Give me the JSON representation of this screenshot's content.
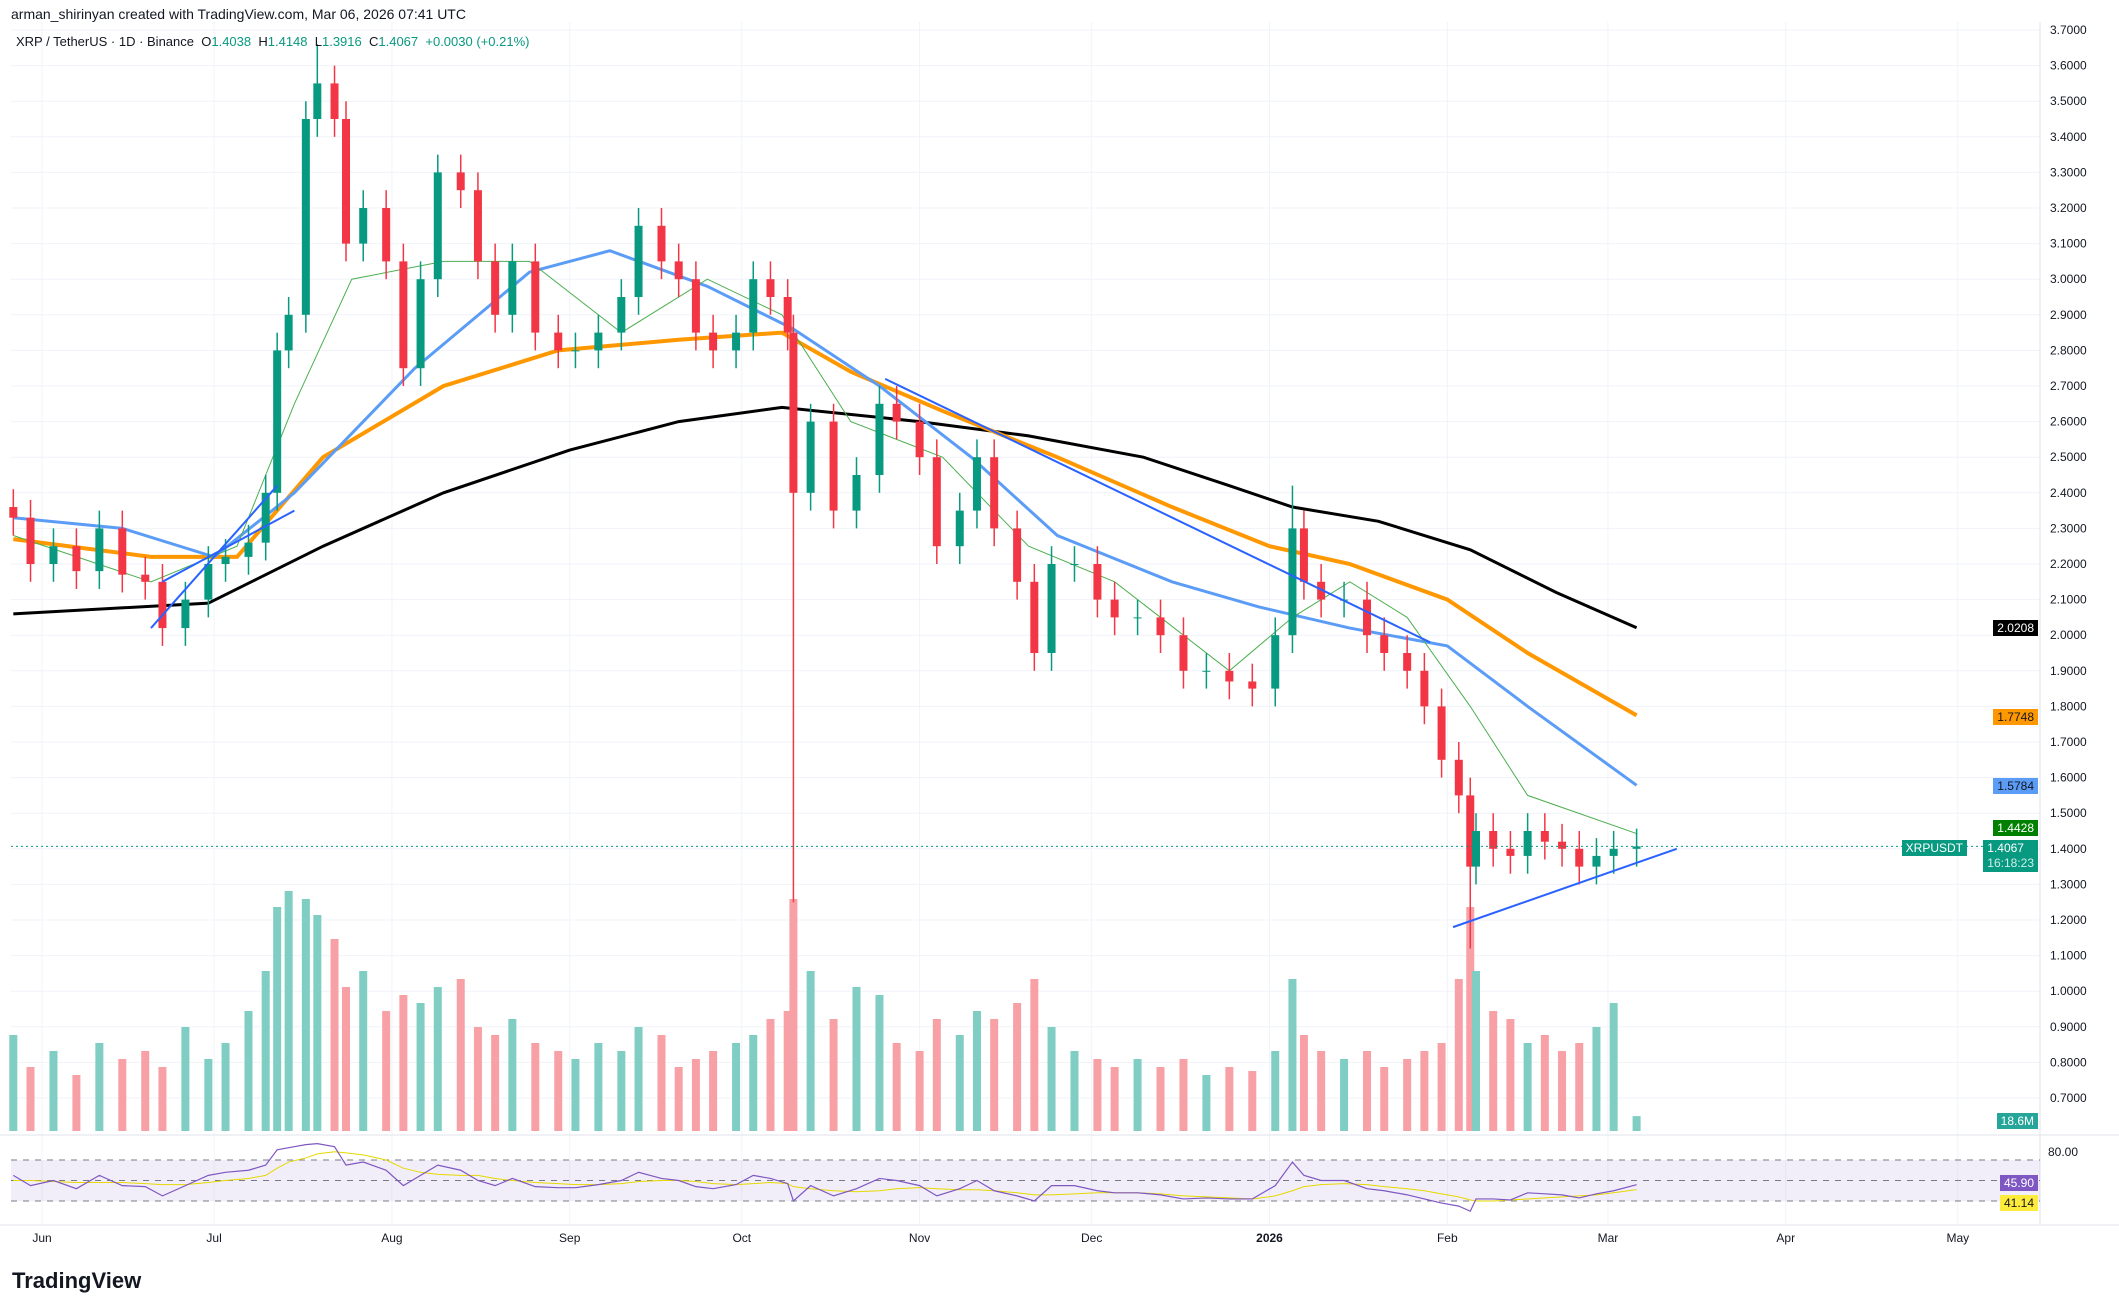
{
  "credit": "arman_shirinyan created with TradingView.com, Mar 06, 2026 07:41 UTC",
  "legend": {
    "symbol": "XRP / TetherUS · 1D · Binance",
    "o_label": "O",
    "o": "1.4038",
    "h_label": "H",
    "h": "1.4148",
    "l_label": "L",
    "l": "1.3916",
    "c_label": "C",
    "c": "1.4067",
    "change": "+0.0030 (+0.21%)"
  },
  "tags": {
    "ma_black": "2.0208",
    "ma_orange": "1.7748",
    "ma_blue": "1.5784",
    "ma_green": "1.4428",
    "symbol": "XRPUSDT",
    "price": "1.4067",
    "countdown": "16:18:23",
    "volume": "18.6M",
    "rsi": "45.90",
    "rsi_ma": "41.14",
    "rsi_level": "80.00"
  },
  "colors": {
    "up": "#089981",
    "down": "#f23645",
    "vol_up": "#7fcdc3",
    "vol_down": "#f7a1a6",
    "ma_black": "#000000",
    "ma_orange": "#ff9800",
    "ma_blue": "#5b9cf6",
    "ma_green": "#4caf50",
    "trendline": "#2962ff",
    "rsi": "#7e57c2",
    "rsi_ma": "#e6d800"
  },
  "logo": "TradingView",
  "chart_data": {
    "type": "candlestick",
    "title": "XRP / TetherUS · 1D · Binance",
    "ylim": [
      0.6,
      3.7
    ],
    "y_ticks": [
      "3.7000",
      "3.6000",
      "3.5000",
      "3.4000",
      "3.3000",
      "3.2000",
      "3.1000",
      "3.0000",
      "2.9000",
      "2.8000",
      "2.7000",
      "2.6000",
      "2.5000",
      "2.4000",
      "2.3000",
      "2.2000",
      "2.1000",
      "2.0000",
      "1.9000",
      "1.8000",
      "1.7000",
      "1.6000",
      "1.5000",
      "1.4000",
      "1.3000",
      "1.2000",
      "1.1000",
      "1.0000",
      "0.9000",
      "0.8000",
      "0.7000"
    ],
    "x_ticks": [
      [
        "Jun",
        "2025-06-01"
      ],
      [
        "Jul",
        "2025-07-01"
      ],
      [
        "Aug",
        "2025-08-01"
      ],
      [
        "Sep",
        "2025-09-01"
      ],
      [
        "Oct",
        "2025-10-01"
      ],
      [
        "Nov",
        "2025-11-01"
      ],
      [
        "Dec",
        "2025-12-01"
      ],
      [
        "2026",
        "2026-01-01"
      ],
      [
        "Feb",
        "2026-02-01"
      ],
      [
        "Mar",
        "2026-03-01"
      ],
      [
        "Apr",
        "2026-04-01"
      ],
      [
        "May",
        "2026-05-01"
      ]
    ],
    "closes": [
      [
        "2025-05-27",
        2.33
      ],
      [
        "2025-05-30",
        2.2
      ],
      [
        "2025-06-03",
        2.25
      ],
      [
        "2025-06-07",
        2.18
      ],
      [
        "2025-06-11",
        2.3
      ],
      [
        "2025-06-15",
        2.17
      ],
      [
        "2025-06-19",
        2.15
      ],
      [
        "2025-06-22",
        2.02
      ],
      [
        "2025-06-26",
        2.1
      ],
      [
        "2025-06-30",
        2.2
      ],
      [
        "2025-07-03",
        2.22
      ],
      [
        "2025-07-07",
        2.26
      ],
      [
        "2025-07-10",
        2.4
      ],
      [
        "2025-07-12",
        2.8
      ],
      [
        "2025-07-14",
        2.9
      ],
      [
        "2025-07-17",
        3.45
      ],
      [
        "2025-07-19",
        3.55
      ],
      [
        "2025-07-22",
        3.45
      ],
      [
        "2025-07-24",
        3.1
      ],
      [
        "2025-07-27",
        3.2
      ],
      [
        "2025-07-31",
        3.05
      ],
      [
        "2025-08-03",
        2.75
      ],
      [
        "2025-08-06",
        3.0
      ],
      [
        "2025-08-09",
        3.3
      ],
      [
        "2025-08-13",
        3.25
      ],
      [
        "2025-08-16",
        3.05
      ],
      [
        "2025-08-19",
        2.9
      ],
      [
        "2025-08-22",
        3.05
      ],
      [
        "2025-08-26",
        2.85
      ],
      [
        "2025-08-30",
        2.8
      ],
      [
        "2025-09-02",
        2.8
      ],
      [
        "2025-09-06",
        2.85
      ],
      [
        "2025-09-10",
        2.95
      ],
      [
        "2025-09-13",
        3.15
      ],
      [
        "2025-09-17",
        3.05
      ],
      [
        "2025-09-20",
        3.0
      ],
      [
        "2025-09-23",
        2.85
      ],
      [
        "2025-09-26",
        2.8
      ],
      [
        "2025-09-30",
        2.85
      ],
      [
        "2025-10-03",
        3.0
      ],
      [
        "2025-10-06",
        2.95
      ],
      [
        "2025-10-09",
        2.85
      ],
      [
        "2025-10-10",
        2.4
      ],
      [
        "2025-10-13",
        2.6
      ],
      [
        "2025-10-17",
        2.35
      ],
      [
        "2025-10-21",
        2.45
      ],
      [
        "2025-10-25",
        2.65
      ],
      [
        "2025-10-28",
        2.6
      ],
      [
        "2025-11-01",
        2.5
      ],
      [
        "2025-11-04",
        2.25
      ],
      [
        "2025-11-08",
        2.35
      ],
      [
        "2025-11-11",
        2.5
      ],
      [
        "2025-11-14",
        2.3
      ],
      [
        "2025-11-18",
        2.15
      ],
      [
        "2025-11-21",
        1.95
      ],
      [
        "2025-11-24",
        2.2
      ],
      [
        "2025-11-28",
        2.2
      ],
      [
        "2025-12-02",
        2.1
      ],
      [
        "2025-12-05",
        2.05
      ],
      [
        "2025-12-09",
        2.05
      ],
      [
        "2025-12-13",
        2.0
      ],
      [
        "2025-12-17",
        1.9
      ],
      [
        "2025-12-21",
        1.9
      ],
      [
        "2025-12-25",
        1.87
      ],
      [
        "2025-12-29",
        1.85
      ],
      [
        "2026-01-02",
        2.0
      ],
      [
        "2026-01-05",
        2.3
      ],
      [
        "2026-01-07",
        2.15
      ],
      [
        "2026-01-10",
        2.1
      ],
      [
        "2026-01-14",
        2.1
      ],
      [
        "2026-01-18",
        2.0
      ],
      [
        "2026-01-21",
        1.95
      ],
      [
        "2026-01-25",
        1.9
      ],
      [
        "2026-01-28",
        1.8
      ],
      [
        "2026-01-31",
        1.65
      ],
      [
        "2026-02-03",
        1.55
      ],
      [
        "2026-02-05",
        1.35
      ],
      [
        "2026-02-06",
        1.45
      ],
      [
        "2026-02-09",
        1.4
      ],
      [
        "2026-02-12",
        1.38
      ],
      [
        "2026-02-15",
        1.45
      ],
      [
        "2026-02-18",
        1.42
      ],
      [
        "2026-02-21",
        1.4
      ],
      [
        "2026-02-24",
        1.35
      ],
      [
        "2026-02-27",
        1.38
      ],
      [
        "2026-03-02",
        1.4
      ],
      [
        "2026-03-06",
        1.4067
      ]
    ],
    "extreme_lows": [
      [
        "2025-10-10",
        1.25
      ],
      [
        "2026-02-05",
        1.12
      ]
    ],
    "extreme_highs": [
      [
        "2025-07-19",
        3.66
      ],
      [
        "2026-01-05",
        2.42
      ]
    ],
    "moving_averages": {
      "black": [
        [
          "2025-05-27",
          2.06
        ],
        [
          "2025-06-30",
          2.09
        ],
        [
          "2025-07-20",
          2.25
        ],
        [
          "2025-08-10",
          2.4
        ],
        [
          "2025-09-01",
          2.52
        ],
        [
          "2025-09-20",
          2.6
        ],
        [
          "2025-10-08",
          2.64
        ],
        [
          "2025-11-01",
          2.6
        ],
        [
          "2025-11-20",
          2.56
        ],
        [
          "2025-12-10",
          2.5
        ],
        [
          "2025-12-25",
          2.42
        ],
        [
          "2026-01-05",
          2.36
        ],
        [
          "2026-01-20",
          2.32
        ],
        [
          "2026-02-05",
          2.24
        ],
        [
          "2026-02-20",
          2.12
        ],
        [
          "2026-03-06",
          2.0208
        ]
      ],
      "orange": [
        [
          "2025-05-27",
          2.27
        ],
        [
          "2025-06-20",
          2.22
        ],
        [
          "2025-07-05",
          2.22
        ],
        [
          "2025-07-20",
          2.5
        ],
        [
          "2025-08-10",
          2.7
        ],
        [
          "2025-08-30",
          2.8
        ],
        [
          "2025-09-20",
          2.83
        ],
        [
          "2025-10-08",
          2.85
        ],
        [
          "2025-10-20",
          2.74
        ],
        [
          "2025-11-05",
          2.63
        ],
        [
          "2025-11-25",
          2.5
        ],
        [
          "2025-12-15",
          2.36
        ],
        [
          "2026-01-01",
          2.25
        ],
        [
          "2026-01-15",
          2.2
        ],
        [
          "2026-02-01",
          2.1
        ],
        [
          "2026-02-15",
          1.95
        ],
        [
          "2026-03-06",
          1.7748
        ]
      ],
      "blue": [
        [
          "2025-05-27",
          2.33
        ],
        [
          "2025-06-15",
          2.3
        ],
        [
          "2025-07-01",
          2.22
        ],
        [
          "2025-07-15",
          2.4
        ],
        [
          "2025-08-05",
          2.75
        ],
        [
          "2025-08-25",
          3.02
        ],
        [
          "2025-09-08",
          3.08
        ],
        [
          "2025-09-25",
          2.98
        ],
        [
          "2025-10-10",
          2.86
        ],
        [
          "2025-10-25",
          2.7
        ],
        [
          "2025-11-10",
          2.5
        ],
        [
          "2025-11-25",
          2.28
        ],
        [
          "2025-12-15",
          2.15
        ],
        [
          "2025-12-30",
          2.08
        ],
        [
          "2026-01-15",
          2.02
        ],
        [
          "2026-02-01",
          1.97
        ],
        [
          "2026-02-15",
          1.8
        ],
        [
          "2026-03-06",
          1.5784
        ]
      ],
      "green": [
        [
          "2025-05-27",
          2.28
        ],
        [
          "2025-06-20",
          2.15
        ],
        [
          "2025-07-05",
          2.25
        ],
        [
          "2025-07-15",
          2.65
        ],
        [
          "2025-07-25",
          3.0
        ],
        [
          "2025-08-10",
          3.05
        ],
        [
          "2025-08-25",
          3.05
        ],
        [
          "2025-09-10",
          2.85
        ],
        [
          "2025-09-25",
          3.0
        ],
        [
          "2025-10-08",
          2.9
        ],
        [
          "2025-10-20",
          2.6
        ],
        [
          "2025-11-05",
          2.5
        ],
        [
          "2025-11-20",
          2.25
        ],
        [
          "2025-12-05",
          2.15
        ],
        [
          "2025-12-25",
          1.9
        ],
        [
          "2026-01-05",
          2.05
        ],
        [
          "2026-01-15",
          2.15
        ],
        [
          "2026-01-25",
          2.05
        ],
        [
          "2026-02-05",
          1.8
        ],
        [
          "2026-02-15",
          1.55
        ],
        [
          "2026-03-06",
          1.4428
        ]
      ]
    },
    "trendlines": [
      [
        [
          "2025-06-20",
          2.02
        ],
        [
          "2025-07-12",
          2.42
        ]
      ],
      [
        [
          "2025-06-22",
          2.15
        ],
        [
          "2025-07-15",
          2.35
        ]
      ],
      [
        [
          "2025-10-26",
          2.72
        ],
        [
          "2026-01-29",
          1.98
        ]
      ],
      [
        [
          "2026-02-02",
          1.18
        ],
        [
          "2026-03-13",
          1.4
        ]
      ]
    ],
    "rsi": {
      "levels": [
        70,
        30
      ],
      "values": [
        55,
        45,
        50,
        42,
        55,
        45,
        44,
        35,
        45,
        55,
        58,
        60,
        65,
        80,
        82,
        85,
        86,
        83,
        65,
        68,
        60,
        45,
        55,
        65,
        60,
        50,
        45,
        52,
        44,
        43,
        43,
        46,
        50,
        58,
        52,
        50,
        44,
        42,
        46,
        55,
        52,
        47,
        30,
        45,
        35,
        42,
        52,
        50,
        45,
        35,
        42,
        50,
        40,
        35,
        30,
        45,
        45,
        40,
        38,
        38,
        36,
        32,
        33,
        32,
        32,
        45,
        68,
        55,
        50,
        50,
        42,
        40,
        36,
        32,
        28,
        25,
        20,
        32,
        32,
        31,
        38,
        37,
        36,
        33,
        37,
        40,
        45.9
      ],
      "ma_values": [
        50,
        50,
        49,
        48,
        48,
        48,
        47,
        46,
        46,
        48,
        50,
        52,
        55,
        62,
        68,
        72,
        76,
        78,
        77,
        75,
        70,
        62,
        58,
        56,
        55,
        55,
        52,
        50,
        48,
        47,
        46,
        46,
        47,
        49,
        50,
        50,
        49,
        47,
        46,
        47,
        48,
        47,
        44,
        42,
        40,
        39,
        40,
        42,
        43,
        42,
        41,
        41,
        40,
        38,
        36,
        36,
        37,
        38,
        38,
        38,
        37,
        35,
        34,
        33,
        32,
        35,
        40,
        44,
        46,
        47,
        46,
        44,
        42,
        40,
        37,
        34,
        31,
        30,
        30,
        31,
        32,
        33,
        34,
        35,
        36,
        38,
        41.14
      ]
    },
    "volume_values": [
      120,
      80,
      100,
      70,
      110,
      90,
      100,
      80,
      130,
      90,
      110,
      150,
      200,
      280,
      300,
      290,
      270,
      240,
      180,
      200,
      150,
      170,
      160,
      180,
      190,
      130,
      120,
      140,
      110,
      100,
      90,
      110,
      100,
      130,
      120,
      80,
      90,
      100,
      110,
      120,
      140,
      150,
      290,
      200,
      140,
      180,
      170,
      110,
      100,
      140,
      120,
      150,
      140,
      160,
      190,
      130,
      100,
      90,
      80,
      90,
      80,
      90,
      70,
      80,
      75,
      100,
      190,
      120,
      100,
      90,
      100,
      80,
      90,
      100,
      110,
      190,
      280,
      200,
      150,
      140,
      110,
      120,
      100,
      110,
      130,
      160,
      18.6
    ]
  }
}
